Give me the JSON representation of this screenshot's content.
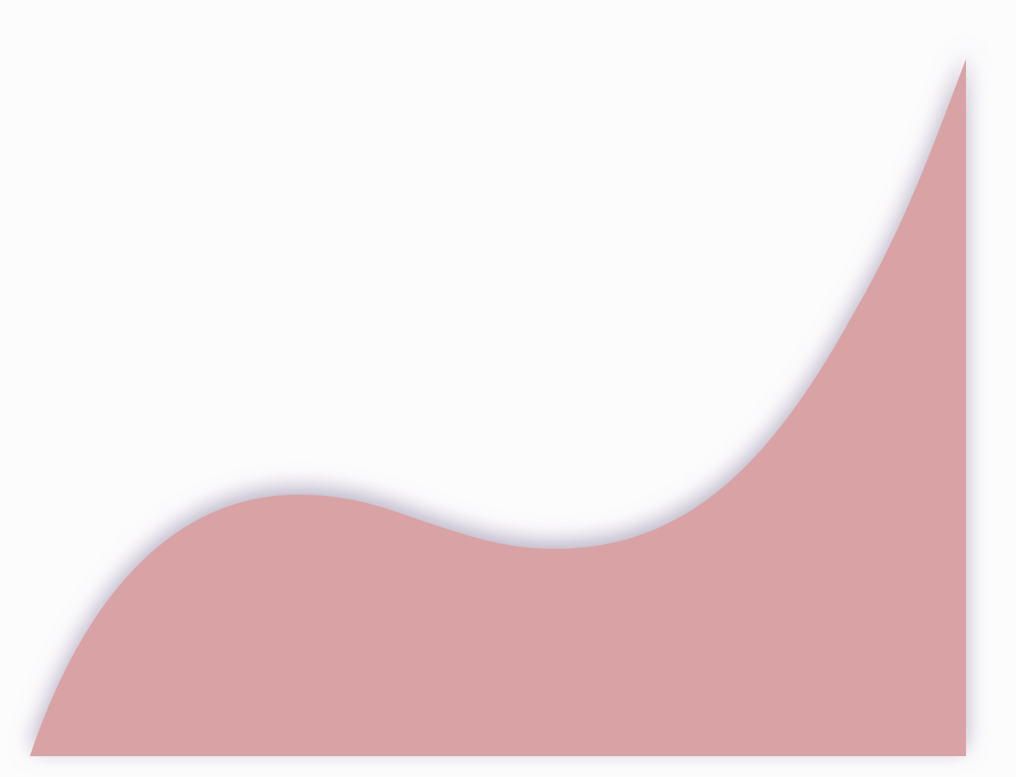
{
  "colors": {
    "background": "#fdfcfd",
    "fill": "#d9a3a6",
    "shadow": "#7d7294"
  }
}
